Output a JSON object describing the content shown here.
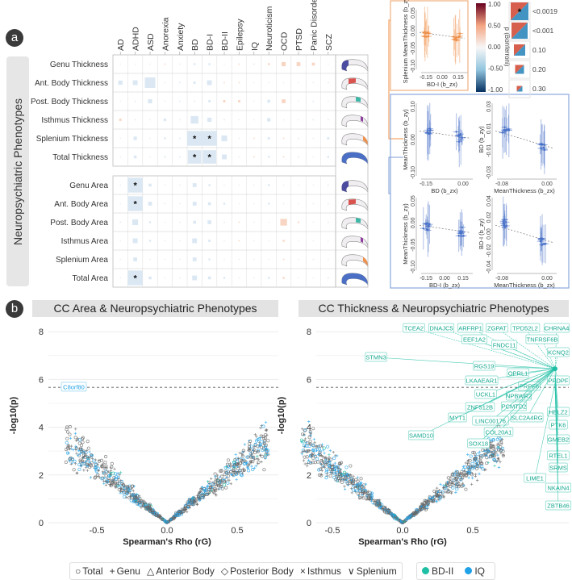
{
  "panel_a": {
    "badge": "a",
    "side_label": "Neuropsychiatric Phenotypes",
    "columns": [
      "AD",
      "ADHD",
      "ASD",
      "Anorexia",
      "Anxiety",
      "BD",
      "BD-I",
      "BD-II",
      "Epilepsy",
      "IQ",
      "Neuroticism",
      "OCD",
      "PTSD",
      "Panic Disorder",
      "SCZ"
    ],
    "rows": [
      "Genu Thickness",
      "Ant. Body Thickness",
      "Post. Body Thickness",
      "Isthmus Thickness",
      "Splenium Thickness",
      "Total Thickness",
      "Genu Area",
      "Ant. Body Area",
      "Post. Body Area",
      "Isthmus Area",
      "Splenium Area",
      "Total Area"
    ],
    "segment_colors": [
      "#4b4ba0",
      "#d9534f",
      "#3fb8a8",
      "#8e3e9e",
      "#f0904a",
      "#4a6fc4",
      "#4b4ba0",
      "#d9534f",
      "#3fb8a8",
      "#8e3e9e",
      "#f0904a",
      "#4a6fc4"
    ],
    "rho": [
      [
        0,
        0,
        0,
        0.02,
        0,
        -0.1,
        -0.1,
        0,
        0.05,
        -0.03,
        0.1,
        0.22,
        0.2,
        0.15,
        0
      ],
      [
        -0.22,
        -0.25,
        -0.55,
        0,
        -0.03,
        -0.12,
        -0.25,
        0.06,
        0.03,
        0,
        0,
        0,
        0,
        0,
        -0.06
      ],
      [
        0,
        -0.06,
        -0.22,
        0,
        -0.06,
        -0.02,
        -0.12,
        0.12,
        0.12,
        0,
        -0.15,
        0.2,
        0,
        -0.04,
        0
      ],
      [
        0.12,
        -0.06,
        0,
        -0.14,
        0,
        -0.4,
        -0.22,
        -0.06,
        0,
        0,
        -0.18,
        0,
        0,
        -0.04,
        -0.06
      ],
      [
        0,
        -0.18,
        0,
        -0.1,
        -0.03,
        -0.55,
        -0.55,
        -0.3,
        0,
        0.03,
        -0.12,
        0.03,
        -0.06,
        0,
        -0.12
      ],
      [
        0,
        -0.15,
        0,
        -0.08,
        -0.03,
        -0.5,
        -0.5,
        -0.25,
        0,
        0.03,
        -0.1,
        0.03,
        -0.06,
        0,
        -0.1
      ],
      [
        0,
        -0.55,
        -0.15,
        0,
        0,
        -0.2,
        -0.1,
        0,
        0,
        0,
        -0.1,
        0,
        0,
        0,
        -0.05
      ],
      [
        0,
        -0.55,
        -0.2,
        -0.05,
        0,
        -0.2,
        -0.15,
        -0.1,
        0,
        0,
        -0.1,
        0,
        0,
        0,
        -0.05
      ],
      [
        -0.06,
        -0.3,
        -0.1,
        0,
        0,
        -0.15,
        -0.2,
        -0.05,
        0.06,
        0,
        0,
        0.35,
        0.08,
        0,
        -0.05
      ],
      [
        0,
        -0.25,
        -0.1,
        0,
        0,
        -0.25,
        -0.12,
        0,
        0.05,
        0,
        0,
        0.1,
        0,
        0,
        0
      ],
      [
        0,
        -0.2,
        0,
        0,
        0,
        -0.2,
        -0.1,
        0,
        0,
        0,
        0,
        0.05,
        0,
        0,
        0
      ],
      [
        0,
        -0.55,
        -0.15,
        0,
        0,
        -0.25,
        -0.15,
        -0.1,
        0,
        0,
        -0.1,
        0.1,
        0,
        0,
        -0.05
      ]
    ],
    "significant": [
      [
        4,
        5
      ],
      [
        4,
        6
      ],
      [
        5,
        5
      ],
      [
        5,
        6
      ],
      [
        6,
        1
      ],
      [
        7,
        1
      ],
      [
        11,
        1
      ]
    ],
    "star": "*",
    "colorbar": {
      "ticks": [
        "1.00",
        "0.50",
        "0.00",
        "-0.50",
        "-1.00"
      ],
      "colors": [
        "#67001f",
        "#f4a582",
        "#f7f7f7",
        "#92c5de",
        "#053061"
      ]
    },
    "p_legend": {
      "title": "p (Bonferroni)",
      "items": [
        "<0.0019",
        "<0.001",
        "0.10",
        "0.20",
        "0.30"
      ],
      "star": "*"
    },
    "orange_plot": {
      "ylabel": "Splenium MeanThickness (b_zy)",
      "xlabel": "BD-I (b_zx)",
      "yticks": [
        "0.05",
        "0.00",
        "-0.05",
        "-0.10"
      ],
      "xticks": [
        "-0.15",
        "0.00",
        "0.15"
      ],
      "color": "#f0904a"
    },
    "blue_plots": [
      {
        "ylabel": "MeanThickness (b_zy)",
        "xlabel": "BD (b_zx)",
        "yticks": [
          "0.10",
          "0.00",
          "-0.10"
        ],
        "xticks": [
          "-0.15",
          "0.00"
        ]
      },
      {
        "ylabel": "BD (b_zy)",
        "xlabel": "MeanThickness (b_zx)",
        "yticks": [
          "0.03",
          "0.01",
          "-0.01",
          "-0.03"
        ],
        "xticks": [
          "-0.08",
          "0.00"
        ]
      },
      {
        "ylabel": "MeanThickness (b_zy)",
        "xlabel": "BD-I (b_zx)",
        "yticks": [
          "0.05",
          "0.00",
          "-0.05",
          "-0.10"
        ],
        "xticks": [
          "-0.15",
          "0.00",
          "0.15"
        ]
      },
      {
        "ylabel": "BD-I (b_zy)",
        "xlabel": "MeanThickness (b_zx)",
        "yticks": [
          "0.04",
          "0.02",
          "0.00",
          "-0.02",
          "-0.04"
        ],
        "xticks": [
          "-0.08",
          "0.00"
        ]
      }
    ]
  },
  "panel_b": {
    "badge": "b",
    "left_title": "CC Area & Neuropsychiatric Phenotypes",
    "right_title": "CC Thickness & Neuropsychiatric Phenotypes",
    "ylabel": "-log10(p)",
    "xlabel": "Spearman's Rho (rG)",
    "legend_shapes": [
      {
        "symbol": "○",
        "label": "Total"
      },
      {
        "symbol": "+",
        "label": "Genu"
      },
      {
        "symbol": "△",
        "label": "Anterior Body"
      },
      {
        "symbol": "◇",
        "label": "Posterior Body"
      },
      {
        "symbol": "×",
        "label": "Isthmus"
      },
      {
        "symbol": "∨",
        "label": "Splenium"
      }
    ],
    "legend_colors": [
      {
        "label": "BD-II",
        "color": "#1fbfa5"
      },
      {
        "label": "IQ",
        "color": "#1fa2e8"
      }
    ]
  },
  "chart_data": [
    {
      "type": "scatter",
      "title": "CC Area & Neuropsychiatric Phenotypes",
      "xlabel": "Spearman's Rho (rG)",
      "ylabel": "-log10(p)",
      "xlim": [
        -0.8,
        0.8
      ],
      "ylim": [
        0,
        8
      ],
      "xticks": [
        "-0.5",
        "0.0",
        "0.5"
      ],
      "yticks": [
        "0",
        "2",
        "4",
        "6",
        "8"
      ],
      "threshold": 5.67,
      "labeled": [
        {
          "gene": "C8orf80",
          "rho": -0.7,
          "logp": 5.68,
          "series": "IQ"
        }
      ]
    },
    {
      "type": "scatter",
      "title": "CC Thickness & Neuropsychiatric Phenotypes",
      "xlabel": "Spearman's Rho (rG)",
      "ylabel": "-log10(p)",
      "xlim": [
        -0.8,
        0.8
      ],
      "ylim": [
        0,
        8
      ],
      "xticks": [
        "-0.5",
        "0.0",
        "0.5"
      ],
      "yticks": [
        "0",
        "2",
        "4",
        "6",
        "8"
      ],
      "threshold": 5.67,
      "labeled": [
        {
          "gene": "TCEA2",
          "rho": 0.68,
          "logp": 6.5
        },
        {
          "gene": "DNAJC5",
          "rho": 0.68,
          "logp": 6.5
        },
        {
          "gene": "ARFRP1",
          "rho": 0.68,
          "logp": 6.5
        },
        {
          "gene": "ZGPAT",
          "rho": 0.68,
          "logp": 6.5
        },
        {
          "gene": "TPD52L2",
          "rho": 0.68,
          "logp": 6.5
        },
        {
          "gene": "CHRNA4",
          "rho": 0.68,
          "logp": 6.5
        },
        {
          "gene": "EEF1A2",
          "rho": 0.68,
          "logp": 6.45
        },
        {
          "gene": "FNDC11",
          "rho": 0.68,
          "logp": 6.45
        },
        {
          "gene": "TNFRSF6B",
          "rho": 0.68,
          "logp": 6.45
        },
        {
          "gene": "KCNQ2",
          "rho": 0.68,
          "logp": 6.45
        },
        {
          "gene": "STMN3",
          "rho": 0.68,
          "logp": 6.4
        },
        {
          "gene": "RGS19",
          "rho": 0.67,
          "logp": 6.4
        },
        {
          "gene": "OPRL1",
          "rho": 0.67,
          "logp": 6.3
        },
        {
          "gene": "LKAAEAR1",
          "rho": 0.67,
          "logp": 6.2
        },
        {
          "gene": "PPDPF",
          "rho": 0.67,
          "logp": 6.1
        },
        {
          "gene": "PRPF6",
          "rho": 0.66,
          "logp": 6.0
        },
        {
          "gene": "UCKL1",
          "rho": 0.66,
          "logp": 5.9
        },
        {
          "gene": "NPBWR2",
          "rho": 0.66,
          "logp": 5.9
        },
        {
          "gene": "ZNF512B",
          "rho": 0.66,
          "logp": 5.9
        },
        {
          "gene": "PCMTD2",
          "rho": 0.66,
          "logp": 5.8
        },
        {
          "gene": "MYT1",
          "rho": 0.66,
          "logp": 5.8
        },
        {
          "gene": "LINC00176",
          "rho": 0.66,
          "logp": 5.8
        },
        {
          "gene": "SLC2A4RG",
          "rho": 0.66,
          "logp": 5.8
        },
        {
          "gene": "SAMD10",
          "rho": 0.66,
          "logp": 5.8
        },
        {
          "gene": "COL20A1",
          "rho": 0.66,
          "logp": 5.8
        },
        {
          "gene": "SOX18",
          "rho": 0.66,
          "logp": 5.8
        },
        {
          "gene": "HELZ2",
          "rho": 0.67,
          "logp": 5.7
        },
        {
          "gene": "PTK6",
          "rho": 0.67,
          "logp": 5.7
        },
        {
          "gene": "GMEB2",
          "rho": 0.67,
          "logp": 5.7
        },
        {
          "gene": "RTEL1",
          "rho": 0.67,
          "logp": 5.7
        },
        {
          "gene": "SRMS",
          "rho": 0.67,
          "logp": 5.7
        },
        {
          "gene": "LIME1",
          "rho": 0.66,
          "logp": 5.7
        },
        {
          "gene": "NKAIN4",
          "rho": 0.67,
          "logp": 5.7
        },
        {
          "gene": "ZBTB46",
          "rho": 0.67,
          "logp": 5.7
        }
      ]
    }
  ]
}
